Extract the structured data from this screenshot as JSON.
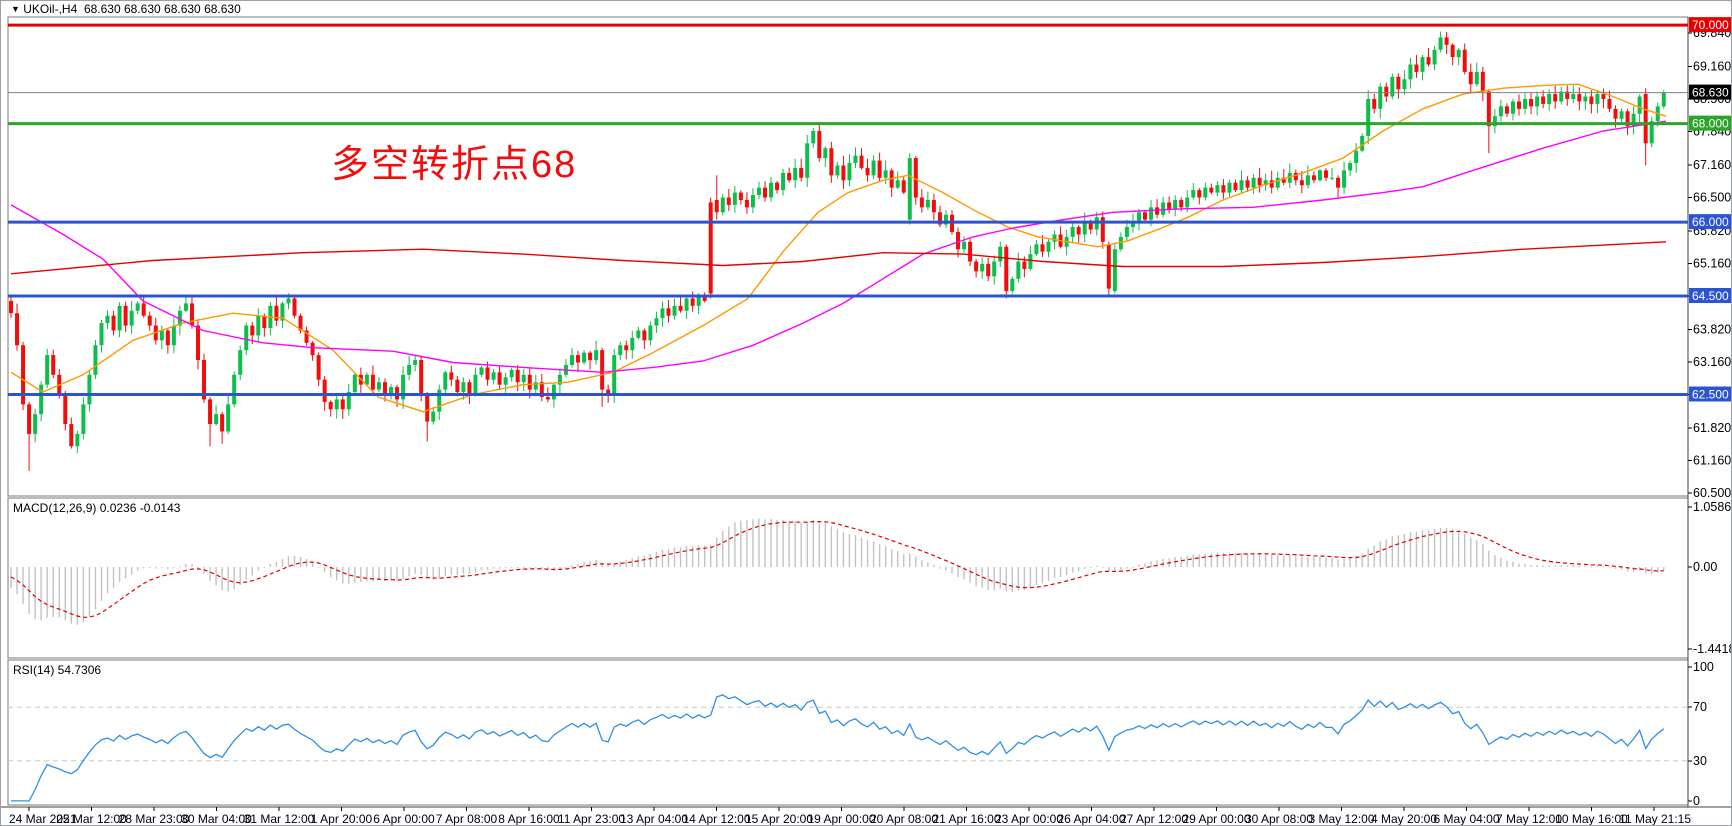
{
  "window": {
    "title_symbol": "UKOil-,H4",
    "title_quotes": "68.630 68.630 68.630 68.630",
    "annotation": "多空转折点68"
  },
  "colors": {
    "bull": "#0bbf4b",
    "bear": "#f20c0c",
    "ma_fast": "#ff9900",
    "ma_slow": "#ff00ff",
    "ma_long": "#e80000",
    "macd_hist": "#c2c2c2",
    "macd_signal": "#e00000",
    "rsi_line": "#2f8fe6",
    "level_blue": "#2b54d0",
    "level_green": "#2aa52a",
    "level_red": "#e80000",
    "current_price_line": "#808080",
    "badge_current": "#000000",
    "axis_text": "#000000",
    "grid_dash": "#c8c8c8",
    "border": "#7a7a7a"
  },
  "chart_data": {
    "type": "candlestick",
    "symbol": "UKOil-",
    "timeframe": "H4",
    "current_price": 68.63,
    "price_axis_ticks": [
      69.84,
      69.16,
      68.5,
      67.84,
      67.16,
      66.5,
      65.82,
      65.16,
      64.5,
      63.82,
      63.16,
      62.5,
      61.82,
      61.16,
      60.5
    ],
    "levels": [
      {
        "price": 70.0,
        "label": "70.000",
        "color": "#e80000",
        "width": 3,
        "badge": "#e80000"
      },
      {
        "price": 68.63,
        "label": "68.630",
        "color": "#808080",
        "width": 1,
        "badge": "#000000"
      },
      {
        "price": 68.0,
        "label": "68.000",
        "color": "#2aa52a",
        "width": 3,
        "badge": "#2aa52a"
      },
      {
        "price": 66.0,
        "label": "66.000",
        "color": "#2b54d0",
        "width": 3,
        "badge": "#2b54d0"
      },
      {
        "price": 64.5,
        "label": "64.500",
        "color": "#2b54d0",
        "width": 3,
        "badge": "#2b54d0"
      },
      {
        "price": 62.5,
        "label": "62.500",
        "color": "#2b54d0",
        "width": 3,
        "badge": "#2b54d0"
      }
    ],
    "time_labels": [
      "24 Mar 2021",
      "25 Mar 12:00",
      "28 Mar 23:00",
      "30 Mar 04:00",
      "31 Mar 12:00",
      "1 Apr 20:00",
      "6 Apr 00:00",
      "7 Apr 08:00",
      "8 Apr 16:00",
      "11 Apr 23:00",
      "13 Apr 04:00",
      "14 Apr 12:00",
      "15 Apr 20:00",
      "19 Apr 00:00",
      "20 Apr 08:00",
      "21 Apr 16:00",
      "23 Apr 00:00",
      "26 Apr 04:00",
      "27 Apr 12:00",
      "29 Apr 00:00",
      "30 Apr 08:00",
      "3 May 12:00",
      "4 May 20:00",
      "6 May 04:00",
      "7 May 12:00",
      "10 May 16:00",
      "11 May 21:15"
    ],
    "candles": {
      "preroll": [
        66.0,
        65.6,
        65.3,
        64.9,
        64.6,
        64.4
      ],
      "closes": [
        64.15,
        63.5,
        62.3,
        61.7,
        62.1,
        62.7,
        63.3,
        62.9,
        62.5,
        61.9,
        61.45,
        61.7,
        62.3,
        62.9,
        63.5,
        63.95,
        64.1,
        63.8,
        64.3,
        63.9,
        64.2,
        64.35,
        64.1,
        63.9,
        63.6,
        63.8,
        63.5,
        63.9,
        64.2,
        64.35,
        63.9,
        63.2,
        62.4,
        61.9,
        62.1,
        61.75,
        62.3,
        62.9,
        63.4,
        63.9,
        63.7,
        64.1,
        63.85,
        64.3,
        64.0,
        64.35,
        64.45,
        64.1,
        63.8,
        63.55,
        63.3,
        62.8,
        62.35,
        62.2,
        62.4,
        62.2,
        62.55,
        62.9,
        62.7,
        62.9,
        62.6,
        62.75,
        62.5,
        62.65,
        62.4,
        62.9,
        63.1,
        63.2,
        62.5,
        61.95,
        62.15,
        62.6,
        62.95,
        62.8,
        62.55,
        62.75,
        62.5,
        62.9,
        63.05,
        62.8,
        62.95,
        62.7,
        62.85,
        63.0,
        62.75,
        62.9,
        62.6,
        62.75,
        62.45,
        62.4,
        62.7,
        62.9,
        63.1,
        63.3,
        63.15,
        63.35,
        63.2,
        63.4,
        62.6,
        62.5,
        63.3,
        63.5,
        63.4,
        63.65,
        63.8,
        63.6,
        63.9,
        64.05,
        64.25,
        64.1,
        64.3,
        64.2,
        64.45,
        64.3,
        64.5,
        64.4,
        64.55,
        66.2,
        66.5,
        66.35,
        66.6,
        66.45,
        66.3,
        66.55,
        66.7,
        66.5,
        66.8,
        66.65,
        67.0,
        66.85,
        67.1,
        66.9,
        67.6,
        67.85,
        67.3,
        67.5,
        66.95,
        67.15,
        66.85,
        67.2,
        67.35,
        67.1,
        66.95,
        67.25,
        66.9,
        67.05,
        66.7,
        66.85,
        66.6,
        67.3,
        66.5,
        66.3,
        66.45,
        66.2,
        65.95,
        66.15,
        65.8,
        65.45,
        65.6,
        65.2,
        65.0,
        65.15,
        64.9,
        65.2,
        65.5,
        64.6,
        64.85,
        65.2,
        65.05,
        65.35,
        65.55,
        65.4,
        65.6,
        65.75,
        65.5,
        65.7,
        65.9,
        65.75,
        66.0,
        65.85,
        66.1,
        65.6,
        64.65,
        65.45,
        65.7,
        65.9,
        66.0,
        66.2,
        66.05,
        66.3,
        66.15,
        66.4,
        66.25,
        66.45,
        66.3,
        66.5,
        66.65,
        66.5,
        66.7,
        66.6,
        66.75,
        66.6,
        66.8,
        66.65,
        66.85,
        66.7,
        66.9,
        66.75,
        66.85,
        66.7,
        66.9,
        66.8,
        67.0,
        66.85,
        66.75,
        66.95,
        66.85,
        67.05,
        66.9,
        66.9,
        66.7,
        67.05,
        67.2,
        67.45,
        67.75,
        68.5,
        68.3,
        68.75,
        68.55,
        68.95,
        68.7,
        68.9,
        69.2,
        69.05,
        69.35,
        69.2,
        69.5,
        69.75,
        69.6,
        69.35,
        69.5,
        69.05,
        68.8,
        69.05,
        68.65,
        67.95,
        68.15,
        68.35,
        68.2,
        68.45,
        68.3,
        68.5,
        68.35,
        68.55,
        68.4,
        68.6,
        68.45,
        68.65,
        68.5,
        68.6,
        68.45,
        68.55,
        68.4,
        68.6,
        68.5,
        68.3,
        68.1,
        68.25,
        67.95,
        68.2,
        68.55,
        67.6,
        68.05,
        68.35,
        68.63
      ],
      "specials": {
        "3": [
          62.3,
          62.35,
          60.95,
          61.7
        ],
        "33": [
          62.4,
          62.45,
          61.45,
          61.9
        ],
        "35": [
          62.1,
          62.15,
          61.5,
          61.75
        ],
        "69": [
          62.5,
          62.55,
          61.55,
          61.95
        ],
        "98": [
          63.4,
          63.45,
          62.25,
          62.6
        ],
        "116": [
          66.4,
          66.5,
          64.45,
          64.55
        ],
        "117": [
          66.45,
          66.95,
          66.05,
          66.2
        ],
        "149": [
          66.05,
          67.4,
          65.95,
          67.3
        ],
        "165": [
          65.5,
          65.55,
          64.45,
          64.6
        ],
        "182": [
          65.55,
          65.6,
          64.5,
          64.65
        ],
        "183": [
          64.6,
          65.55,
          64.55,
          65.45
        ],
        "237": [
          69.5,
          69.87,
          69.45,
          69.75
        ],
        "245": [
          68.65,
          68.7,
          67.4,
          67.95
        ],
        "271": [
          68.6,
          68.72,
          67.15,
          67.6
        ],
        "274": [
          68.35,
          68.68,
          68.3,
          68.63
        ]
      }
    },
    "moving_averages": [
      {
        "name": "ma-fast-orange",
        "color": "#ff9900",
        "points": [
          [
            8,
            62.95
          ],
          [
            40,
            62.55
          ],
          [
            80,
            62.9
          ],
          [
            130,
            63.6
          ],
          [
            180,
            63.95
          ],
          [
            230,
            64.15
          ],
          [
            280,
            64.05
          ],
          [
            330,
            63.4
          ],
          [
            375,
            62.45
          ],
          [
            420,
            62.15
          ],
          [
            470,
            62.5
          ],
          [
            520,
            62.7
          ],
          [
            565,
            62.75
          ],
          [
            610,
            62.95
          ],
          [
            650,
            63.35
          ],
          [
            700,
            63.9
          ],
          [
            745,
            64.45
          ],
          [
            780,
            65.4
          ],
          [
            815,
            66.2
          ],
          [
            845,
            66.6
          ],
          [
            880,
            66.85
          ],
          [
            905,
            66.95
          ],
          [
            940,
            66.6
          ],
          [
            975,
            66.2
          ],
          [
            1005,
            65.9
          ],
          [
            1035,
            65.7
          ],
          [
            1065,
            65.6
          ],
          [
            1095,
            65.5
          ],
          [
            1125,
            65.62
          ],
          [
            1155,
            65.85
          ],
          [
            1185,
            66.1
          ],
          [
            1220,
            66.45
          ],
          [
            1260,
            66.75
          ],
          [
            1300,
            67.0
          ],
          [
            1340,
            67.3
          ],
          [
            1380,
            67.85
          ],
          [
            1420,
            68.3
          ],
          [
            1460,
            68.6
          ],
          [
            1500,
            68.72
          ],
          [
            1545,
            68.78
          ],
          [
            1575,
            68.8
          ],
          [
            1610,
            68.55
          ],
          [
            1640,
            68.3
          ],
          [
            1663,
            68.15
          ]
        ]
      },
      {
        "name": "ma-slow-magenta",
        "color": "#ff00ff",
        "points": [
          [
            8,
            66.35
          ],
          [
            60,
            65.75
          ],
          [
            100,
            65.25
          ],
          [
            140,
            64.4
          ],
          [
            200,
            63.8
          ],
          [
            260,
            63.55
          ],
          [
            310,
            63.45
          ],
          [
            390,
            63.38
          ],
          [
            450,
            63.15
          ],
          [
            520,
            63.05
          ],
          [
            600,
            62.95
          ],
          [
            650,
            63.05
          ],
          [
            700,
            63.18
          ],
          [
            750,
            63.5
          ],
          [
            800,
            63.95
          ],
          [
            840,
            64.35
          ],
          [
            880,
            64.85
          ],
          [
            920,
            65.35
          ],
          [
            970,
            65.7
          ],
          [
            1010,
            65.88
          ],
          [
            1060,
            66.05
          ],
          [
            1110,
            66.2
          ],
          [
            1180,
            66.27
          ],
          [
            1250,
            66.3
          ],
          [
            1320,
            66.45
          ],
          [
            1380,
            66.6
          ],
          [
            1420,
            66.72
          ],
          [
            1470,
            67.05
          ],
          [
            1540,
            67.5
          ],
          [
            1600,
            67.85
          ],
          [
            1663,
            68.05
          ]
        ]
      },
      {
        "name": "ma-long-red",
        "color": "#e80000",
        "points": [
          [
            8,
            64.95
          ],
          [
            150,
            65.22
          ],
          [
            300,
            65.38
          ],
          [
            420,
            65.45
          ],
          [
            520,
            65.35
          ],
          [
            620,
            65.22
          ],
          [
            720,
            65.12
          ],
          [
            800,
            65.2
          ],
          [
            880,
            65.38
          ],
          [
            960,
            65.35
          ],
          [
            1040,
            65.2
          ],
          [
            1120,
            65.1
          ],
          [
            1220,
            65.1
          ],
          [
            1320,
            65.18
          ],
          [
            1420,
            65.3
          ],
          [
            1520,
            65.45
          ],
          [
            1663,
            65.6
          ]
        ]
      }
    ],
    "macd": {
      "label": "MACD(12,26,9) 0.0236 -0.0143",
      "name": "MACD(12,26,9)",
      "value_main": "0.0236",
      "value_signal": "-0.0143",
      "axis_labels": [
        "1.0586",
        "0.00",
        "-1.4418"
      ]
    },
    "rsi": {
      "label": "RSI(14) 54.7306",
      "name": "RSI(14)",
      "value": "54.7306",
      "axis_labels": [
        "100",
        "70",
        "30",
        "0"
      ],
      "level_lines": [
        70,
        30
      ]
    }
  }
}
